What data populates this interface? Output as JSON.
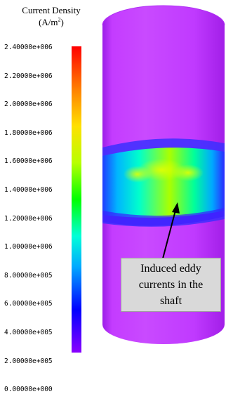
{
  "legend": {
    "title_line1": "Current Density",
    "title_unit": "(A/m",
    "title_unit_sup": "2",
    "title_unit_close": ")",
    "ticks": [
      "2.40000e+006",
      "2.20000e+006",
      "2.00000e+006",
      "1.80000e+006",
      "1.60000e+006",
      "1.40000e+006",
      "1.20000e+006",
      "1.00000e+006",
      "8.00000e+005",
      "6.00000e+005",
      "4.00000e+005",
      "2.00000e+005",
      "0.00000e+000"
    ]
  },
  "annotation": {
    "lines": [
      "Induced eddy",
      "currents in the",
      "shaft"
    ]
  },
  "colors": {
    "shaft": "#c23cff",
    "shaft_edge": "#a81ee8",
    "box_fill": "#d9d9d9",
    "arrow": "#000000"
  }
}
